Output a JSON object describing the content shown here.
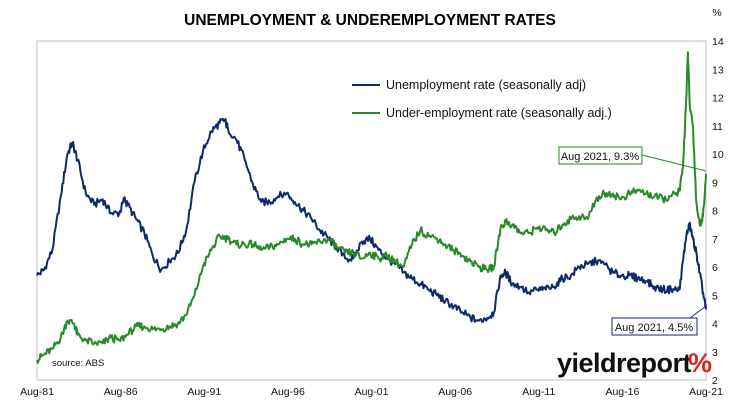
{
  "chart_data": {
    "type": "line",
    "title": "UNEMPLOYMENT & UNDEREMPLOYMENT RATES",
    "ylabel": "%",
    "ylim": [
      2,
      14
    ],
    "y_ticks": [
      "2",
      "3",
      "4",
      "5",
      "6",
      "7",
      "8",
      "9",
      "10",
      "11",
      "12",
      "13",
      "14"
    ],
    "xlim": [
      1981.58,
      2021.58
    ],
    "x_ticks": [
      {
        "x": 1981.58,
        "label": "Aug-81"
      },
      {
        "x": 1986.58,
        "label": "Aug-86"
      },
      {
        "x": 1991.58,
        "label": "Aug-91"
      },
      {
        "x": 1996.58,
        "label": "Aug-96"
      },
      {
        "x": 2001.58,
        "label": "Aug-01"
      },
      {
        "x": 2006.58,
        "label": "Aug-06"
      },
      {
        "x": 2011.58,
        "label": "Aug-11"
      },
      {
        "x": 2016.58,
        "label": "Aug-16"
      },
      {
        "x": 2021.58,
        "label": "Aug-21"
      }
    ],
    "source": "source: ABS",
    "series": [
      {
        "name": "Unemployment rate (seasonally adj)",
        "color": "#0f2a6b",
        "x": [
          1981.58,
          1982.0,
          1982.5,
          1983.0,
          1983.4,
          1983.7,
          1984.0,
          1984.5,
          1985.0,
          1985.5,
          1986.0,
          1986.5,
          1986.8,
          1987.0,
          1987.5,
          1988.0,
          1988.5,
          1989.0,
          1989.5,
          1990.0,
          1990.5,
          1991.0,
          1991.5,
          1992.0,
          1992.5,
          1992.8,
          1993.0,
          1993.5,
          1994.0,
          1994.5,
          1995.0,
          1995.5,
          1996.0,
          1996.5,
          1997.0,
          1997.5,
          1998.0,
          1998.5,
          1999.0,
          1999.5,
          2000.0,
          2000.5,
          2001.0,
          2001.5,
          2002.0,
          2002.5,
          2003.0,
          2003.5,
          2004.0,
          2004.5,
          2005.0,
          2005.5,
          2006.0,
          2006.5,
          2007.0,
          2007.5,
          2008.0,
          2008.5,
          2008.9,
          2009.3,
          2009.6,
          2010.0,
          2010.5,
          2011.0,
          2011.5,
          2012.0,
          2012.5,
          2013.0,
          2013.5,
          2014.0,
          2014.5,
          2015.0,
          2015.5,
          2016.0,
          2016.5,
          2017.0,
          2017.5,
          2018.0,
          2018.5,
          2019.0,
          2019.5,
          2020.0,
          2020.2,
          2020.4,
          2020.6,
          2020.8,
          2021.0,
          2021.2,
          2021.4,
          2021.58
        ],
        "values": [
          5.7,
          5.9,
          6.6,
          8.5,
          10.0,
          10.4,
          9.8,
          8.6,
          8.2,
          8.4,
          7.9,
          7.9,
          8.4,
          8.2,
          7.7,
          7.2,
          6.4,
          5.9,
          6.2,
          6.5,
          7.3,
          9.0,
          10.1,
          10.8,
          11.1,
          11.2,
          10.9,
          10.5,
          9.8,
          8.9,
          8.3,
          8.3,
          8.5,
          8.6,
          8.3,
          8.0,
          7.7,
          7.3,
          7.0,
          6.7,
          6.3,
          6.3,
          6.9,
          7.0,
          6.6,
          6.3,
          6.1,
          5.8,
          5.6,
          5.4,
          5.2,
          5.0,
          4.8,
          4.6,
          4.4,
          4.2,
          4.1,
          4.2,
          4.4,
          5.7,
          5.8,
          5.4,
          5.3,
          5.1,
          5.2,
          5.2,
          5.3,
          5.6,
          5.7,
          6.0,
          6.1,
          6.2,
          6.1,
          5.8,
          5.7,
          5.7,
          5.6,
          5.5,
          5.3,
          5.2,
          5.2,
          5.2,
          6.2,
          7.1,
          7.5,
          7.0,
          6.5,
          5.8,
          5.1,
          4.5
        ]
      },
      {
        "name": "Under-employment rate (seasonally adj.)",
        "color": "#2a8a2a",
        "x": [
          1981.58,
          1982.0,
          1982.5,
          1983.0,
          1983.4,
          1983.8,
          1984.0,
          1984.5,
          1985.0,
          1985.5,
          1986.0,
          1986.5,
          1987.0,
          1987.5,
          1988.0,
          1988.5,
          1989.0,
          1989.5,
          1990.0,
          1990.5,
          1991.0,
          1991.5,
          1992.0,
          1992.5,
          1993.0,
          1993.5,
          1994.0,
          1994.5,
          1995.0,
          1995.5,
          1996.0,
          1996.5,
          1997.0,
          1997.5,
          1998.0,
          1998.5,
          1999.0,
          1999.5,
          2000.0,
          2000.5,
          2001.0,
          2001.5,
          2002.0,
          2002.5,
          2003.0,
          2003.5,
          2004.0,
          2004.5,
          2005.0,
          2005.5,
          2006.0,
          2006.5,
          2007.0,
          2007.5,
          2008.0,
          2008.5,
          2008.9,
          2009.3,
          2009.6,
          2010.0,
          2010.5,
          2011.0,
          2011.5,
          2012.0,
          2012.5,
          2013.0,
          2013.5,
          2014.0,
          2014.5,
          2015.0,
          2015.5,
          2016.0,
          2016.5,
          2017.0,
          2017.5,
          2018.0,
          2018.5,
          2019.0,
          2019.5,
          2020.0,
          2020.2,
          2020.4,
          2020.5,
          2020.6,
          2020.8,
          2021.0,
          2021.2,
          2021.4,
          2021.58
        ],
        "values": [
          2.7,
          2.9,
          3.1,
          3.5,
          4.1,
          4.0,
          3.6,
          3.4,
          3.3,
          3.3,
          3.5,
          3.4,
          3.6,
          3.9,
          3.9,
          3.8,
          3.8,
          3.9,
          4.0,
          4.3,
          5.0,
          6.0,
          6.6,
          7.1,
          7.0,
          6.8,
          6.8,
          6.8,
          6.6,
          6.7,
          6.8,
          7.0,
          7.0,
          6.8,
          6.8,
          6.9,
          7.0,
          6.7,
          6.5,
          6.5,
          6.3,
          6.5,
          6.3,
          6.4,
          6.2,
          6.0,
          6.8,
          7.3,
          7.1,
          7.0,
          6.8,
          6.6,
          6.4,
          6.2,
          6.0,
          5.9,
          6.0,
          7.4,
          7.6,
          7.5,
          7.2,
          7.2,
          7.4,
          7.3,
          7.2,
          7.5,
          7.7,
          7.8,
          7.7,
          8.4,
          8.6,
          8.6,
          8.4,
          8.6,
          8.7,
          8.6,
          8.5,
          8.4,
          8.5,
          8.7,
          9.5,
          12.0,
          13.6,
          11.8,
          11.0,
          8.3,
          7.5,
          7.8,
          9.3
        ]
      }
    ],
    "annotations": [
      {
        "text": "Aug 2021, 9.3%",
        "x": 2021.58,
        "y": 9.3,
        "series": 1
      },
      {
        "text": "Aug 2021, 4.5%",
        "x": 2021.58,
        "y": 4.5,
        "series": 0
      }
    ],
    "legend_position": "top-center"
  },
  "branding": {
    "logo_text": "yieldreport",
    "logo_symbol": "%",
    "logo_symbol_color": "#d9261c"
  }
}
